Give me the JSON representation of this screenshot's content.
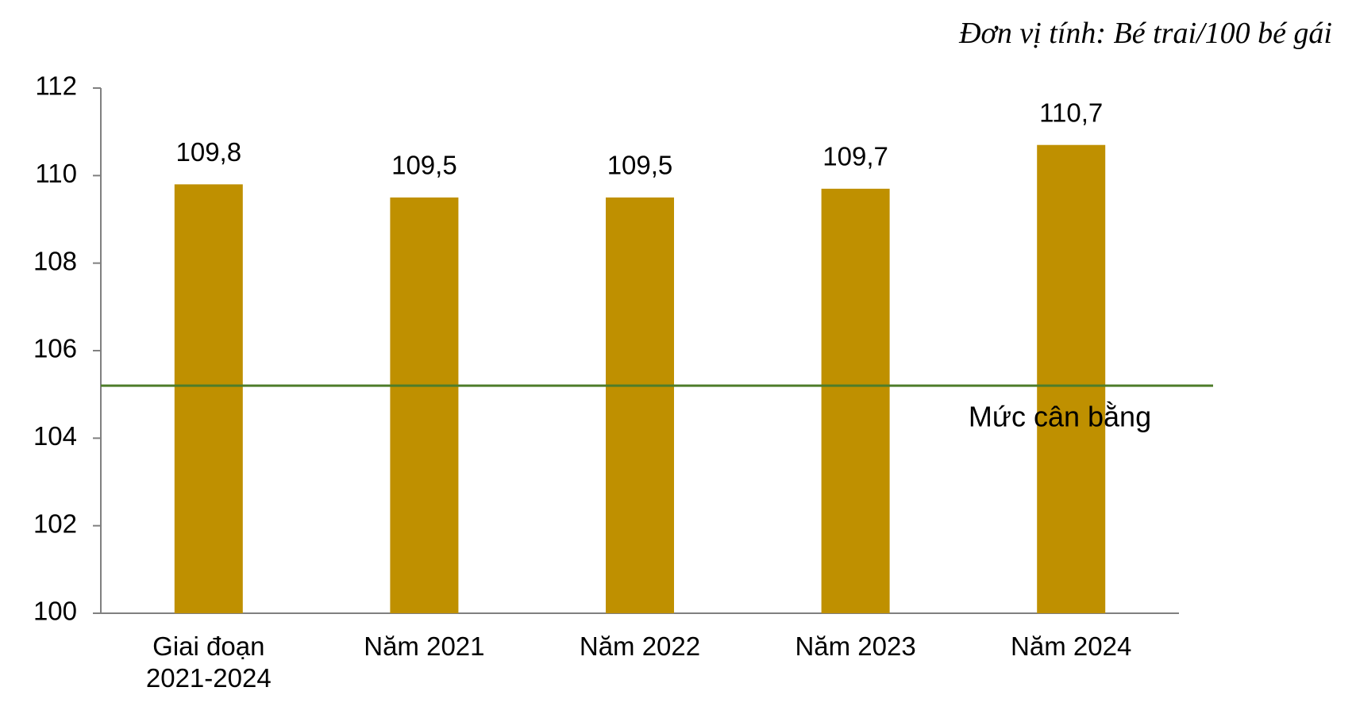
{
  "chart_data": {
    "type": "bar",
    "subtitle": "Đơn vị tính: Bé trai/100 bé gái",
    "categories": [
      "Giai đoạn 2021-2024",
      "Năm 2021",
      "Năm 2022",
      "Năm 2023",
      "Năm 2024"
    ],
    "values": [
      109.8,
      109.5,
      109.5,
      109.7,
      110.7
    ],
    "value_labels": [
      "109,8",
      "109,5",
      "109,5",
      "109,7",
      "110,7"
    ],
    "color": "#bf9000",
    "ylim": [
      100,
      112
    ],
    "yticks": [
      100,
      102,
      104,
      106,
      108,
      110,
      112
    ],
    "reference_line": {
      "value": 105.2,
      "label": "Mức cân bằng",
      "color": "#4e7d2a"
    }
  }
}
